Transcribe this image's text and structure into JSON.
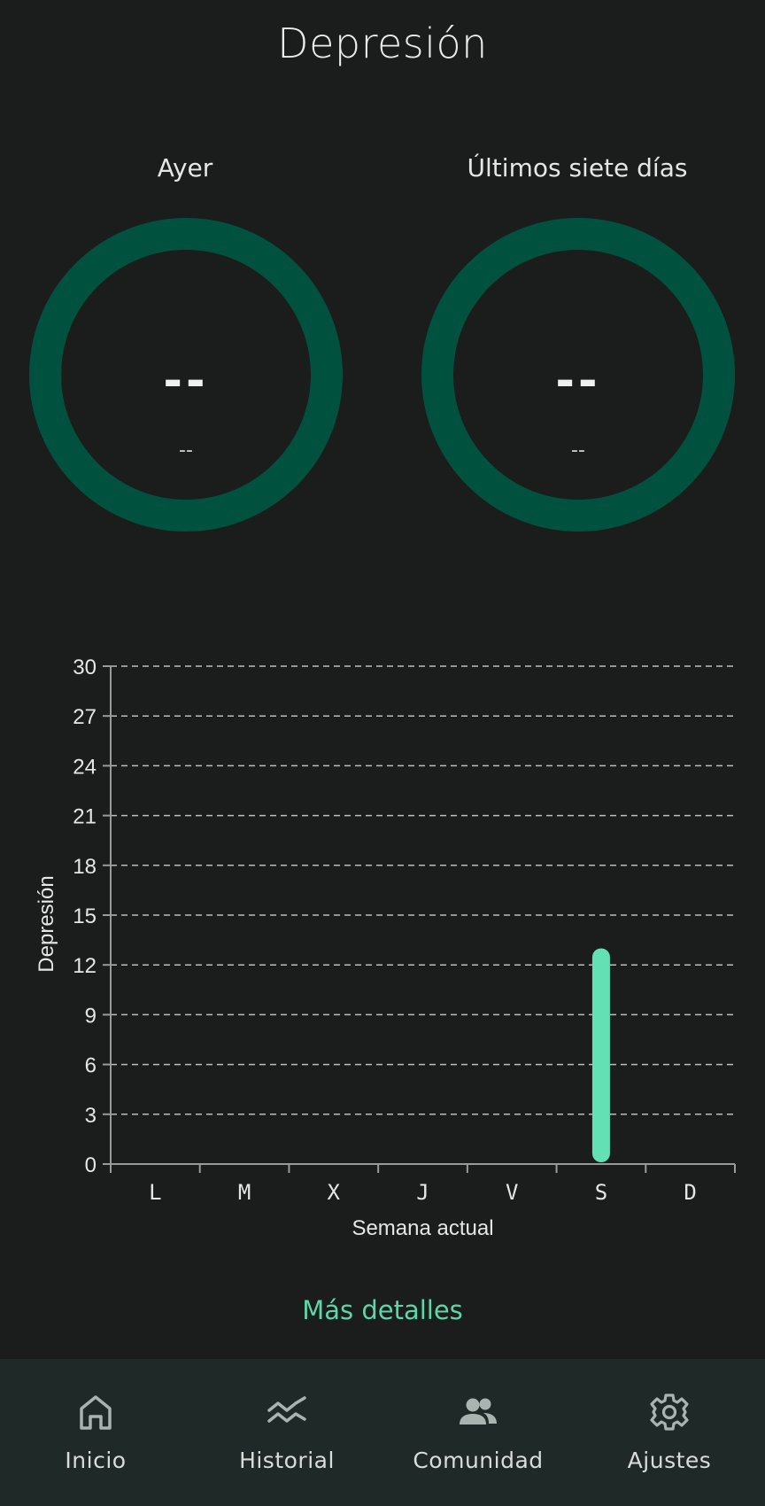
{
  "page": {
    "title": "Depresión"
  },
  "rings": [
    {
      "label": "Ayer",
      "value": "--",
      "sub": "--"
    },
    {
      "label": "Últimos siete días",
      "value": "--",
      "sub": "--"
    }
  ],
  "colors": {
    "background": "#1b1c1c",
    "ring": "#00523f",
    "accent": "#5fd6a8",
    "bar": "#63e0b4",
    "nav_background": "#1f2927"
  },
  "chart_data": {
    "type": "bar",
    "categories": [
      "L",
      "M",
      "X",
      "J",
      "V",
      "S",
      "D"
    ],
    "values": [
      0,
      0,
      0,
      0,
      0,
      13,
      0
    ],
    "title": "",
    "xlabel": "Semana actual",
    "ylabel": "Depresión",
    "ylim": [
      0,
      30
    ],
    "yticks": [
      0,
      3,
      6,
      9,
      12,
      15,
      18,
      21,
      24,
      27,
      30
    ],
    "grid": "dashed horizontal",
    "legend": "none"
  },
  "details_link": "Más detalles",
  "nav": [
    {
      "label": "Inicio",
      "icon": "home-icon"
    },
    {
      "label": "Historial",
      "icon": "history-icon"
    },
    {
      "label": "Comunidad",
      "icon": "community-icon"
    },
    {
      "label": "Ajustes",
      "icon": "settings-icon"
    }
  ]
}
